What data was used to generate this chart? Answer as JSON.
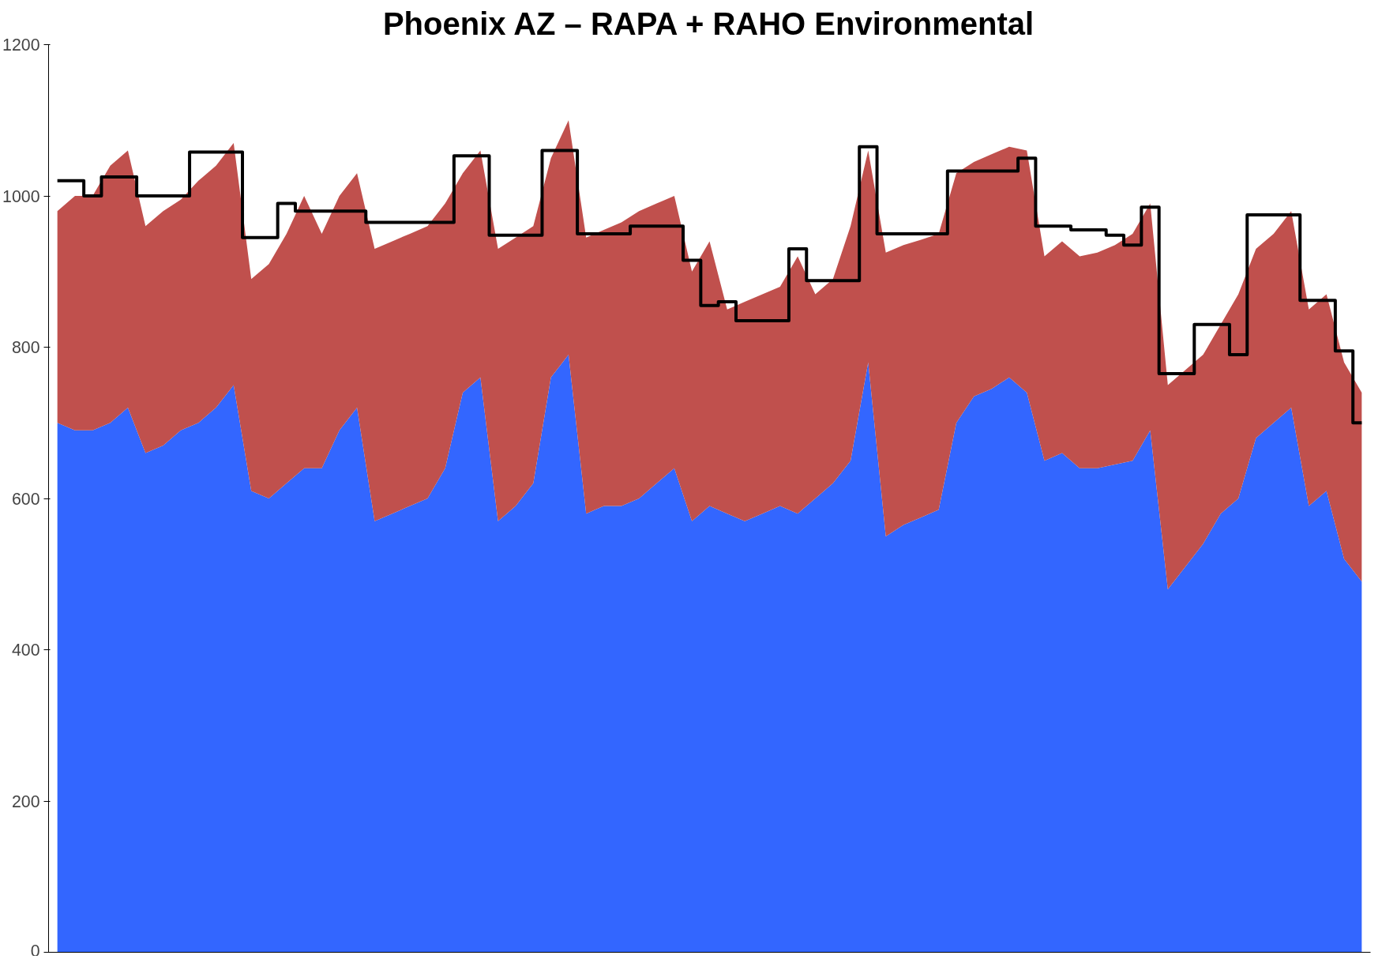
{
  "chart_data": {
    "type": "area",
    "title": "Phoenix AZ – RAPA + RAHO Environmental",
    "stacked": true,
    "grid": false,
    "tick_labels": "y",
    "categories": [
      null,
      null,
      null,
      null,
      null,
      null,
      null,
      null,
      null,
      null,
      null,
      null,
      null,
      null,
      null,
      null,
      null,
      null,
      null,
      null,
      null,
      null,
      null,
      null,
      null,
      null,
      null,
      null,
      null,
      null,
      null,
      null,
      null,
      null,
      null,
      null,
      null,
      null,
      null,
      null,
      null,
      null,
      null,
      null,
      null,
      null,
      null,
      null,
      null,
      null,
      null,
      null,
      null,
      null,
      null,
      null,
      null,
      null,
      null,
      null,
      null,
      null,
      null,
      null,
      null,
      null,
      null,
      null,
      null,
      null,
      null,
      null,
      null,
      null,
      null
    ],
    "ylim": [
      0,
      1200
    ],
    "yticks": [
      0,
      200,
      400,
      600,
      800,
      1000,
      1200
    ],
    "series": [
      {
        "color": "#3366ff",
        "values": [
          700,
          690,
          690,
          700,
          720,
          660,
          670,
          690,
          700,
          720,
          750,
          610,
          600,
          620,
          640,
          640,
          690,
          720,
          570,
          580,
          590,
          600,
          640,
          740,
          760,
          570,
          590,
          620,
          760,
          790,
          580,
          590,
          590,
          600,
          620,
          640,
          570,
          590,
          580,
          570,
          580,
          590,
          580,
          600,
          620,
          650,
          780,
          550,
          565,
          575,
          585,
          700,
          735,
          745,
          760,
          740,
          650,
          660,
          640,
          640,
          645,
          650,
          690,
          480,
          510,
          540,
          580,
          600,
          680,
          700,
          720,
          590,
          610,
          520,
          490
        ]
      },
      {
        "color": "#c0504d",
        "values": [
          280,
          310,
          310,
          340,
          340,
          300,
          310,
          305,
          320,
          320,
          320,
          280,
          310,
          330,
          360,
          310,
          310,
          310,
          360,
          360,
          360,
          360,
          350,
          290,
          300,
          360,
          355,
          340,
          290,
          310,
          365,
          365,
          375,
          380,
          370,
          360,
          330,
          350,
          270,
          290,
          290,
          290,
          340,
          270,
          270,
          310,
          280,
          375,
          370,
          367,
          365,
          330,
          310,
          310,
          305,
          320,
          270,
          280,
          280,
          285,
          290,
          300,
          300,
          270,
          260,
          250,
          250,
          270,
          250,
          250,
          260,
          260,
          260,
          260,
          250
        ]
      },
      {
        "type": "step",
        "color": "#000000",
        "values": [
          1020,
          1020,
          1000,
          1025,
          1025,
          1000,
          1000,
          1000,
          1058,
          1058,
          1058,
          945,
          945,
          990,
          980,
          980,
          980,
          980,
          965,
          965,
          965,
          965,
          965,
          1053,
          1053,
          948,
          948,
          948,
          1060,
          1060,
          950,
          950,
          950,
          960,
          960,
          960,
          915,
          855,
          860,
          835,
          835,
          835,
          930,
          888,
          888,
          888,
          1065,
          950,
          950,
          950,
          950,
          1033,
          1033,
          1033,
          1033,
          1050,
          960,
          960,
          955,
          955,
          948,
          935,
          985,
          765,
          765,
          830,
          830,
          790,
          975,
          975,
          975,
          862,
          862,
          795,
          700
        ]
      }
    ]
  }
}
